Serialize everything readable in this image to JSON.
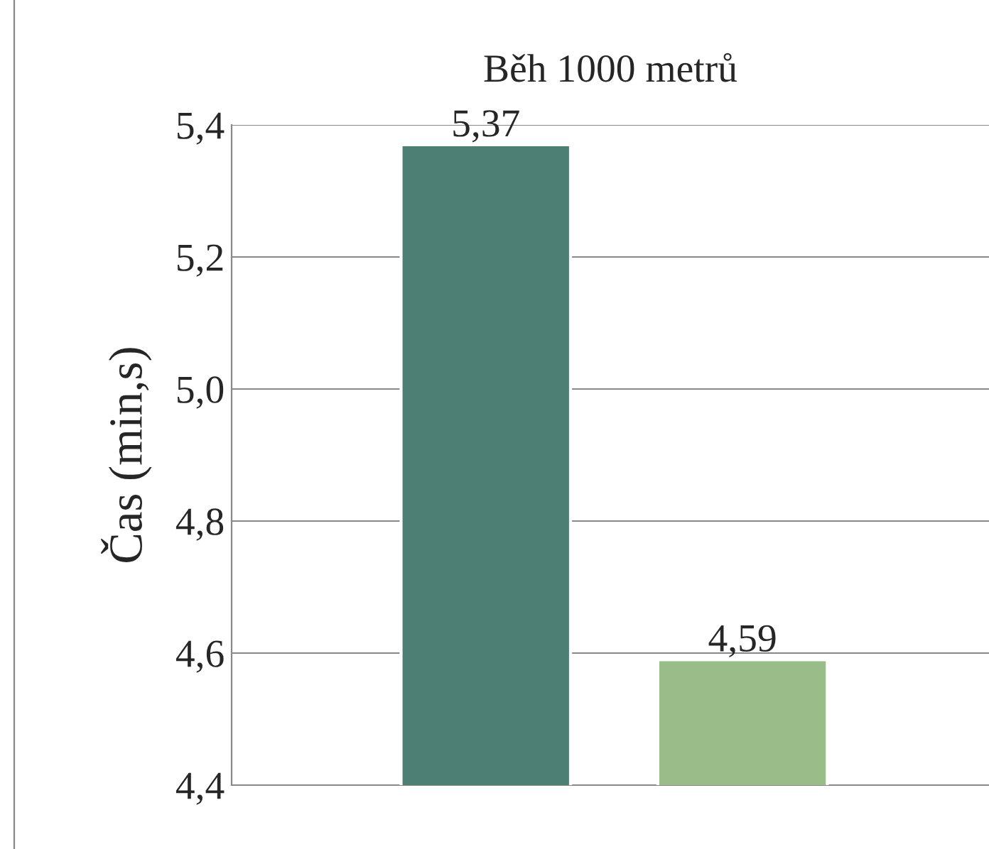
{
  "chart_data": {
    "type": "bar",
    "title": "Běh 1000 metrů",
    "ylabel": "Čas (min,s)",
    "categories": [
      null,
      null
    ],
    "values": [
      5.37,
      4.59
    ],
    "colors": [
      "#4e7f74",
      "#98bd88"
    ],
    "value_labels": [
      "5,37",
      "4,59"
    ],
    "ylim": [
      4.4,
      5.4
    ],
    "yticks": [
      {
        "value": 4.4,
        "label": "4,4"
      },
      {
        "value": 4.6,
        "label": "4,6"
      },
      {
        "value": 4.8,
        "label": "4,8"
      },
      {
        "value": 5.0,
        "label": "5,0"
      },
      {
        "value": 5.2,
        "label": "5,2"
      },
      {
        "value": 5.4,
        "label": "5,4"
      }
    ],
    "grid": "y"
  }
}
